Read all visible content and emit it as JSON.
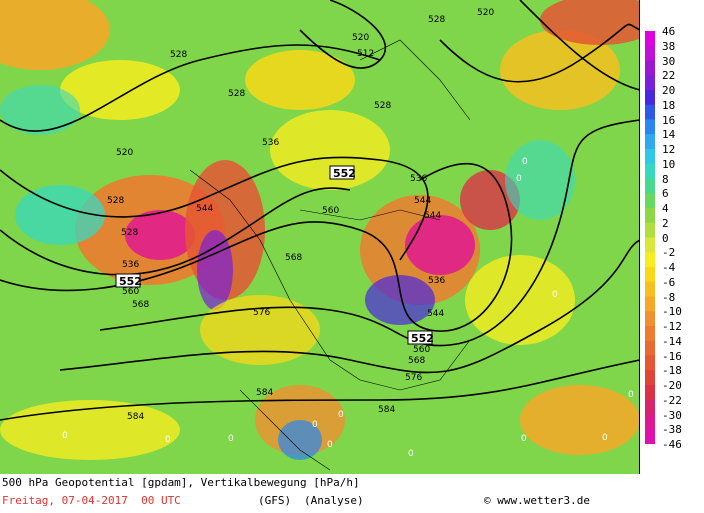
{
  "caption": {
    "line1": "500 hPa Geopotential [gpdam], Vertikalbewegung [hPa/h]",
    "date_line": "Freitag, 07-04-2017  00 UTC",
    "model": "(GFS)",
    "run_type": "(Analyse)",
    "credit": "© www.wetter3.de"
  },
  "colors": {
    "caption_date": "#e0322e",
    "background_green": "#7fd64a",
    "contour": "#000000"
  },
  "scale": {
    "labels": [
      "46",
      "38",
      "30",
      "22",
      "20",
      "18",
      "16",
      "14",
      "12",
      "10",
      "8",
      "6",
      "4",
      "2",
      "0",
      "-2",
      "-4",
      "-6",
      "-8",
      "-10",
      "-12",
      "-14",
      "-16",
      "-18",
      "-20",
      "-22",
      "-30",
      "-38",
      "-46"
    ],
    "colors": [
      "#e000e0",
      "#c010d8",
      "#9a18d0",
      "#7b20d8",
      "#4a28e0",
      "#2f58e8",
      "#2a86f0",
      "#30a8f0",
      "#30c8e8",
      "#38d8c0",
      "#48d890",
      "#68d860",
      "#8ed848",
      "#b0de40",
      "#d8e838",
      "#f6ec20",
      "#f8d818",
      "#f6c020",
      "#f4a828",
      "#f09030",
      "#ec7c30",
      "#e86a30",
      "#e45634",
      "#e04438",
      "#dc3248",
      "#d8246c",
      "#e01890",
      "#e010b0",
      "#e000e0"
    ]
  },
  "contour_labels": [
    "552",
    "552",
    "552",
    "528",
    "528",
    "528",
    "528",
    "528",
    "528",
    "520",
    "520",
    "520",
    "512",
    "536",
    "536",
    "536",
    "536",
    "544",
    "544",
    "544",
    "544",
    "560",
    "560",
    "560",
    "568",
    "568",
    "568",
    "576",
    "576",
    "584",
    "584"
  ],
  "zero_labels": [
    "0",
    "0",
    "0",
    "0",
    "0",
    "0",
    "0",
    "0",
    "0",
    "0",
    "0",
    "0",
    "0"
  ]
}
